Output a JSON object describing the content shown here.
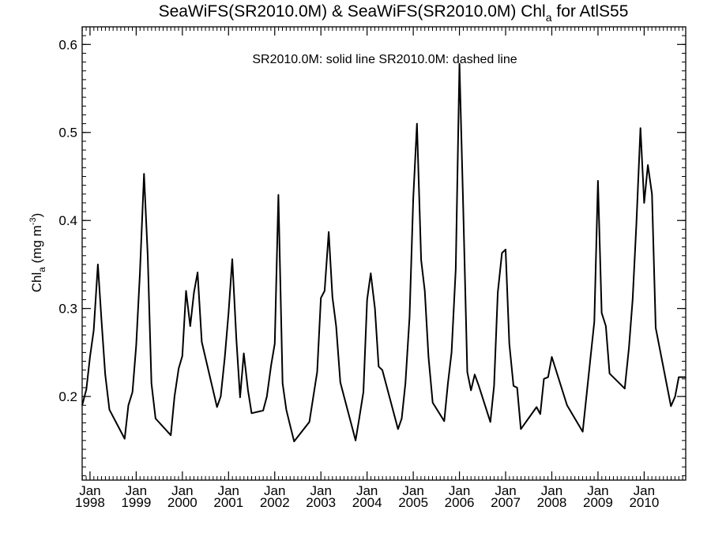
{
  "chart_data": {
    "type": "line",
    "title": {
      "prefix": "SeaWiFS(SR2010.0M) & SeaWiFS(SR2010.0M)  Chl",
      "sub": "a",
      "suffix": " for AtlS55"
    },
    "annotation": "SR2010.0M: solid line   SR2010.0M: dashed line",
    "ylabel": {
      "main": "Chl",
      "sub": "a",
      "rest": " (mg m",
      "sup": "-3",
      "close": ")"
    },
    "ylim": [
      0.105,
      0.62
    ],
    "xlim": [
      1997.83,
      2010.9
    ],
    "yticks": [
      {
        "value": 0.2,
        "label": "0.2"
      },
      {
        "value": 0.3,
        "label": "0.3"
      },
      {
        "value": 0.4,
        "label": "0.4"
      },
      {
        "value": 0.5,
        "label": "0.5"
      },
      {
        "value": 0.6,
        "label": "0.6"
      }
    ],
    "xticks": [
      {
        "value": 1998,
        "month": "Jan",
        "year": "1998"
      },
      {
        "value": 1999,
        "month": "Jan",
        "year": "1999"
      },
      {
        "value": 2000,
        "month": "Jan",
        "year": "2000"
      },
      {
        "value": 2001,
        "month": "Jan",
        "year": "2001"
      },
      {
        "value": 2002,
        "month": "Jan",
        "year": "2002"
      },
      {
        "value": 2003,
        "month": "Jan",
        "year": "2003"
      },
      {
        "value": 2004,
        "month": "Jan",
        "year": "2004"
      },
      {
        "value": 2005,
        "month": "Jan",
        "year": "2005"
      },
      {
        "value": 2006,
        "month": "Jan",
        "year": "2006"
      },
      {
        "value": 2007,
        "month": "Jan",
        "year": "2007"
      },
      {
        "value": 2008,
        "month": "Jan",
        "year": "2008"
      },
      {
        "value": 2009,
        "month": "Jan",
        "year": "2009"
      },
      {
        "value": 2010,
        "month": "Jan",
        "year": "2010"
      }
    ],
    "series": [
      {
        "style": "solid",
        "color": "#000000",
        "points": [
          [
            1997.83,
            0.19
          ],
          [
            1997.92,
            0.208
          ],
          [
            1998.0,
            0.245
          ],
          [
            1998.08,
            0.275
          ],
          [
            1998.17,
            0.35
          ],
          [
            1998.25,
            0.285
          ],
          [
            1998.33,
            0.225
          ],
          [
            1998.42,
            0.185
          ],
          [
            1998.75,
            0.152
          ],
          [
            1998.83,
            0.19
          ],
          [
            1998.92,
            0.205
          ],
          [
            1999.0,
            0.258
          ],
          [
            1999.08,
            0.34
          ],
          [
            1999.17,
            0.453
          ],
          [
            1999.25,
            0.36
          ],
          [
            1999.33,
            0.215
          ],
          [
            1999.42,
            0.175
          ],
          [
            1999.75,
            0.156
          ],
          [
            1999.83,
            0.2
          ],
          [
            1999.92,
            0.232
          ],
          [
            2000.0,
            0.246
          ],
          [
            2000.08,
            0.32
          ],
          [
            2000.17,
            0.28
          ],
          [
            2000.25,
            0.318
          ],
          [
            2000.33,
            0.341
          ],
          [
            2000.42,
            0.262
          ],
          [
            2000.75,
            0.188
          ],
          [
            2000.83,
            0.2
          ],
          [
            2000.92,
            0.245
          ],
          [
            2001.0,
            0.295
          ],
          [
            2001.08,
            0.356
          ],
          [
            2001.17,
            0.265
          ],
          [
            2001.25,
            0.199
          ],
          [
            2001.33,
            0.249
          ],
          [
            2001.42,
            0.207
          ],
          [
            2001.5,
            0.181
          ],
          [
            2001.75,
            0.184
          ],
          [
            2001.83,
            0.2
          ],
          [
            2001.92,
            0.235
          ],
          [
            2002.0,
            0.26
          ],
          [
            2002.08,
            0.429
          ],
          [
            2002.17,
            0.215
          ],
          [
            2002.25,
            0.185
          ],
          [
            2002.33,
            0.168
          ],
          [
            2002.42,
            0.149
          ],
          [
            2002.75,
            0.171
          ],
          [
            2002.92,
            0.228
          ],
          [
            2003.0,
            0.312
          ],
          [
            2003.08,
            0.32
          ],
          [
            2003.17,
            0.387
          ],
          [
            2003.25,
            0.313
          ],
          [
            2003.33,
            0.28
          ],
          [
            2003.42,
            0.216
          ],
          [
            2003.75,
            0.15
          ],
          [
            2003.83,
            0.175
          ],
          [
            2003.92,
            0.205
          ],
          [
            2004.0,
            0.31
          ],
          [
            2004.08,
            0.34
          ],
          [
            2004.17,
            0.3
          ],
          [
            2004.25,
            0.234
          ],
          [
            2004.33,
            0.23
          ],
          [
            2004.67,
            0.163
          ],
          [
            2004.75,
            0.175
          ],
          [
            2004.83,
            0.215
          ],
          [
            2004.92,
            0.29
          ],
          [
            2005.0,
            0.425
          ],
          [
            2005.08,
            0.51
          ],
          [
            2005.17,
            0.355
          ],
          [
            2005.25,
            0.32
          ],
          [
            2005.33,
            0.245
          ],
          [
            2005.42,
            0.193
          ],
          [
            2005.67,
            0.172
          ],
          [
            2005.75,
            0.215
          ],
          [
            2005.83,
            0.25
          ],
          [
            2005.92,
            0.345
          ],
          [
            2006.0,
            0.578
          ],
          [
            2006.08,
            0.42
          ],
          [
            2006.17,
            0.228
          ],
          [
            2006.25,
            0.207
          ],
          [
            2006.33,
            0.225
          ],
          [
            2006.42,
            0.212
          ],
          [
            2006.67,
            0.171
          ],
          [
            2006.75,
            0.212
          ],
          [
            2006.83,
            0.318
          ],
          [
            2006.92,
            0.363
          ],
          [
            2007.0,
            0.367
          ],
          [
            2007.08,
            0.26
          ],
          [
            2007.17,
            0.212
          ],
          [
            2007.25,
            0.21
          ],
          [
            2007.33,
            0.163
          ],
          [
            2007.67,
            0.188
          ],
          [
            2007.75,
            0.18
          ],
          [
            2007.83,
            0.22
          ],
          [
            2007.92,
            0.222
          ],
          [
            2008.0,
            0.245
          ],
          [
            2008.33,
            0.19
          ],
          [
            2008.67,
            0.16
          ],
          [
            2008.75,
            0.2
          ],
          [
            2008.83,
            0.24
          ],
          [
            2008.92,
            0.285
          ],
          [
            2009.0,
            0.445
          ],
          [
            2009.08,
            0.295
          ],
          [
            2009.17,
            0.28
          ],
          [
            2009.25,
            0.226
          ],
          [
            2009.58,
            0.209
          ],
          [
            2009.67,
            0.255
          ],
          [
            2009.75,
            0.31
          ],
          [
            2009.83,
            0.395
          ],
          [
            2009.92,
            0.505
          ],
          [
            2010.0,
            0.42
          ],
          [
            2010.08,
            0.463
          ],
          [
            2010.17,
            0.43
          ],
          [
            2010.25,
            0.278
          ],
          [
            2010.58,
            0.189
          ],
          [
            2010.67,
            0.2
          ],
          [
            2010.75,
            0.222
          ],
          [
            2010.9,
            0.222
          ]
        ]
      }
    ]
  }
}
